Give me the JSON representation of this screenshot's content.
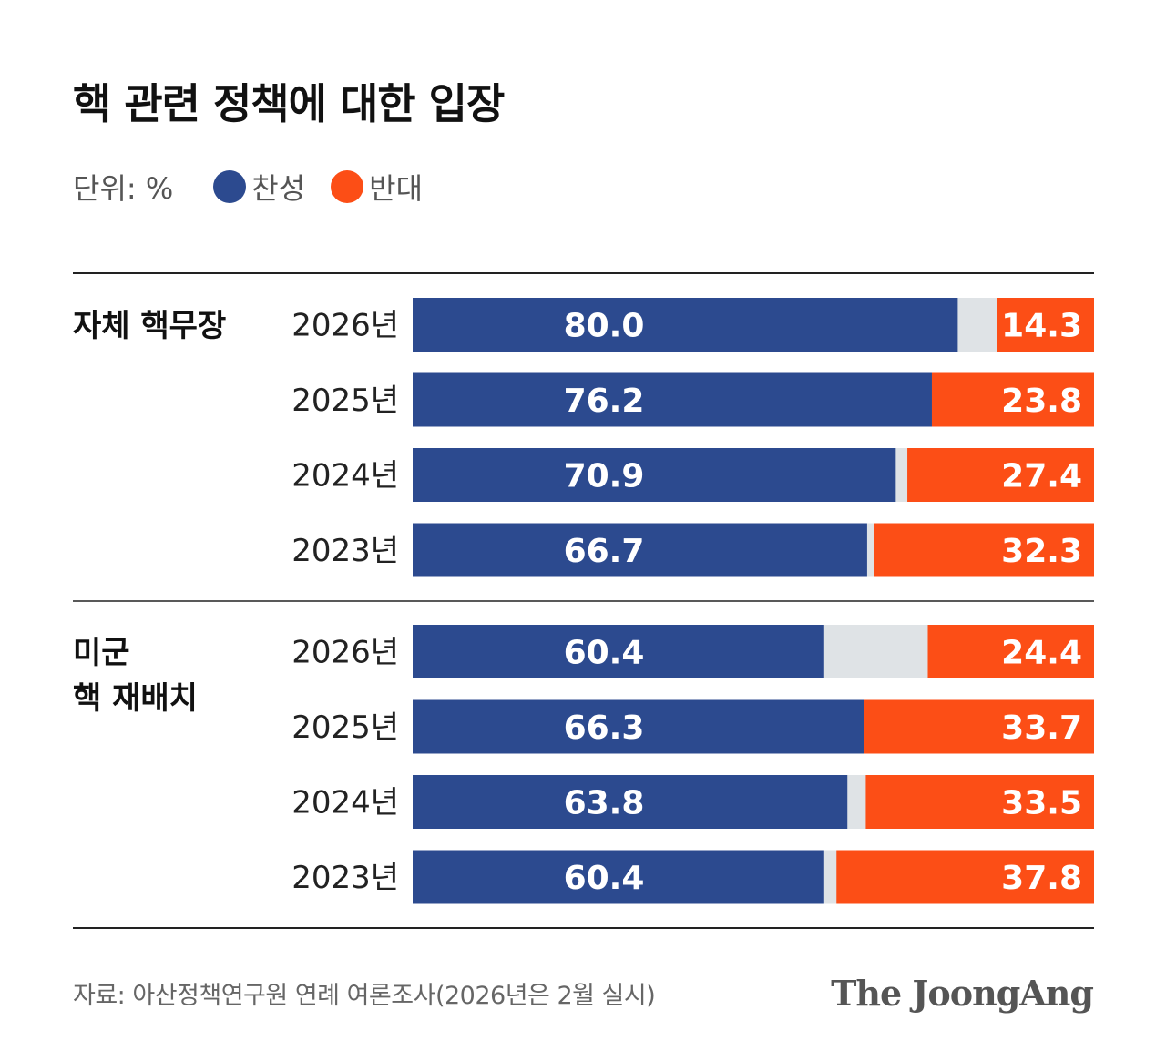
{
  "title": "핵 관련 정책에 대한 입장",
  "legend": {
    "unit": "단위: %",
    "items": [
      {
        "label": "찬성",
        "color": "#2c4a8f"
      },
      {
        "label": "반대",
        "color": "#fc4e16"
      }
    ]
  },
  "colors": {
    "agree": "#2c4a8f",
    "oppose": "#fc4e16",
    "neutral": "#dfe3e6",
    "rule": "#222222"
  },
  "chart_data": {
    "type": "bar",
    "orientation": "horizontal-stacked-100",
    "groups": [
      {
        "name": "자체 핵무장",
        "rows": [
          {
            "year": "2026년",
            "agree": 80.0,
            "oppose": 14.3
          },
          {
            "year": "2025년",
            "agree": 76.2,
            "oppose": 23.8
          },
          {
            "year": "2024년",
            "agree": 70.9,
            "oppose": 27.4
          },
          {
            "year": "2023년",
            "agree": 66.7,
            "oppose": 32.3
          }
        ]
      },
      {
        "name": "미군\n핵 재배치",
        "rows": [
          {
            "year": "2026년",
            "agree": 60.4,
            "oppose": 24.4
          },
          {
            "year": "2025년",
            "agree": 66.3,
            "oppose": 33.7
          },
          {
            "year": "2024년",
            "agree": 63.8,
            "oppose": 33.5
          },
          {
            "year": "2023년",
            "agree": 60.4,
            "oppose": 37.8
          }
        ]
      }
    ],
    "series": [
      {
        "name": "찬성"
      },
      {
        "name": "반대"
      }
    ],
    "xlim": [
      0,
      100
    ]
  },
  "footer": {
    "source": "자료: 아산정책연구원 연례 여론조사(2026년은 2월 실시)",
    "logo": "The JoongAng"
  }
}
